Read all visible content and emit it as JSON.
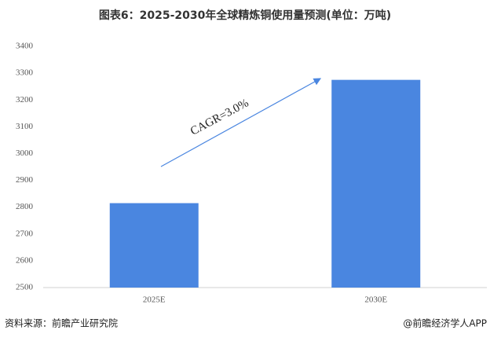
{
  "chart_data": {
    "type": "bar",
    "title": "图表6：2025-2030年全球精炼铜使用量预测(单位：万吨)",
    "categories": [
      "2025E",
      "2030E"
    ],
    "values": [
      2815,
      3275
    ],
    "color": "#4a86e0",
    "ylim": [
      2500,
      3400
    ],
    "yticks": [
      2500,
      2600,
      2700,
      2800,
      2900,
      3000,
      3100,
      3200,
      3300,
      3400
    ],
    "grid": false,
    "annotation": "CAGR=3.0%",
    "source": "资料来源：前瞻产业研究院",
    "credit": "@前瞻经济学人APP"
  }
}
